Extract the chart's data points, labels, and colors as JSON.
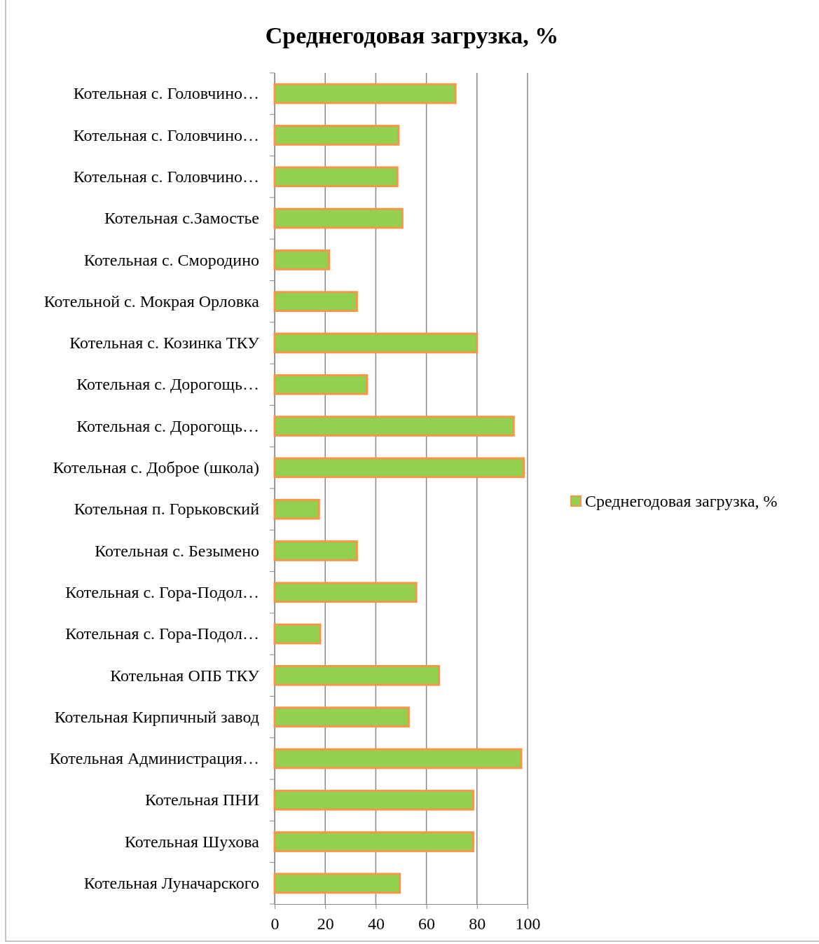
{
  "chart_data": {
    "type": "bar",
    "orientation": "horizontal",
    "title": "Среднегодовая загрузка, %",
    "categories": [
      "Котельная с. Головчино…",
      "Котельная с. Головчино…",
      "Котельная с. Головчино…",
      "Котельная с.Замостье",
      "Котельная с. Смородино",
      "Котельной с. Мокрая Орловка",
      "Котельная с. Козинка ТКУ",
      "Котельная с. Дорогощь…",
      "Котельная с. Дорогощь…",
      "Котельная с. Доброе (школа)",
      "Котельная п. Горьковский",
      "Котельная с. Безымено",
      "Котельная с. Гора-Подол…",
      "Котельная с. Гора-Подол…",
      "Котельная ОПБ ТКУ",
      "Котельная Кирпичный завод",
      "Котельная Администрация…",
      "Котельная ПНИ",
      "Котельная Шухова",
      "Котельная Луначарского"
    ],
    "series": [
      {
        "name": "Среднегодовая загрузка, %",
        "color": "#92d050",
        "values": [
          71.5,
          49,
          48.5,
          50.5,
          21.5,
          32.5,
          80,
          36.5,
          94.5,
          98.5,
          17.5,
          32.5,
          56,
          18,
          65,
          53,
          97.5,
          78.5,
          78.5,
          49.5
        ]
      }
    ],
    "xlim": [
      0,
      100
    ],
    "xticks": [
      0,
      20,
      40,
      60,
      80,
      100
    ],
    "grid": "x",
    "legend": "right"
  }
}
